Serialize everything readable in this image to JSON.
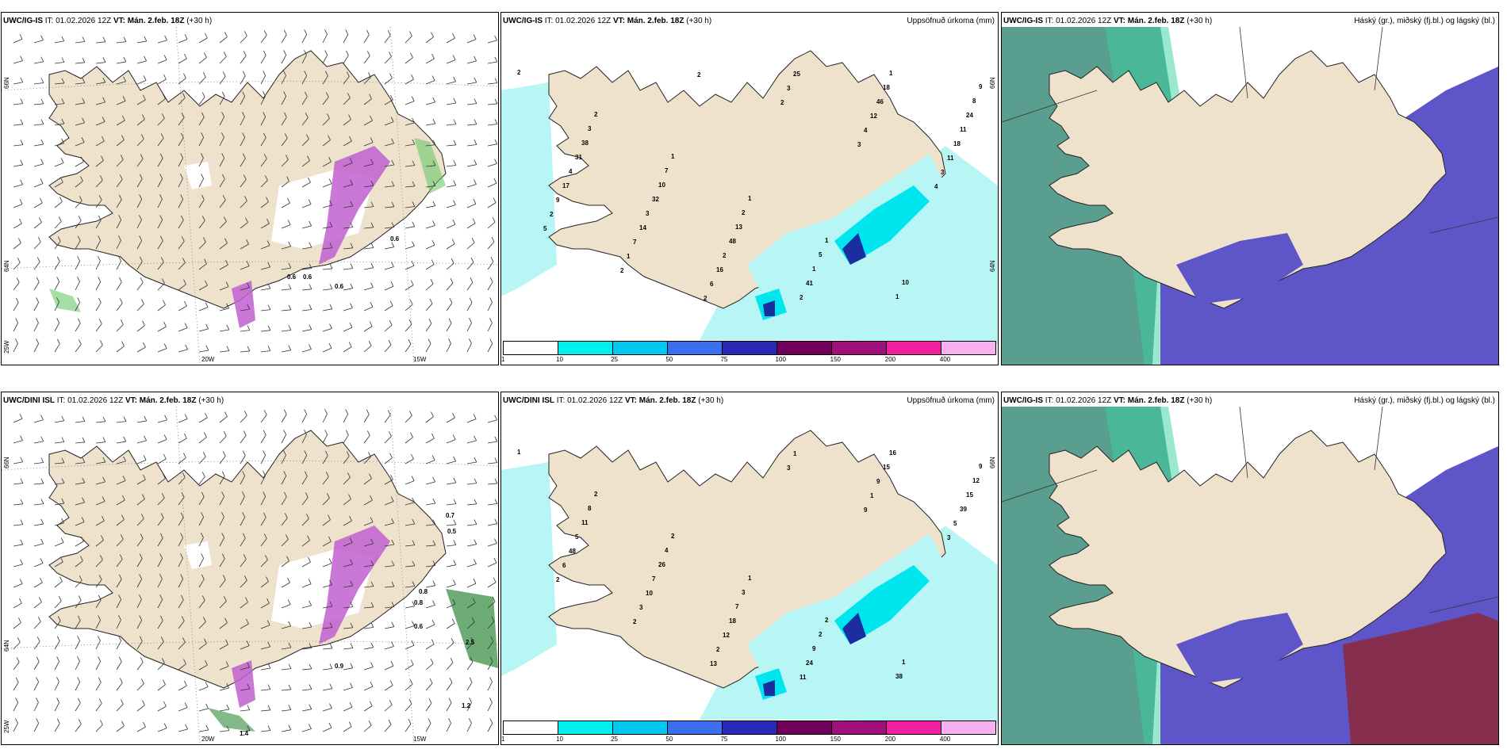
{
  "colors": {
    "land": "#efe2cc",
    "sea": "#ffffff",
    "precip_light": "#b8f6f6",
    "precip_mid": "#00e6ee",
    "precip_dark": "#1a2ea0",
    "snow_purple": "#c060d0",
    "cloud_high": "#5a9e90",
    "cloud_mid": "#5e56c8",
    "cloud_low": "#8b2a40"
  },
  "panels": [
    {
      "model": "UWC/IG-IS",
      "it_label": "IT:",
      "it_value": "01.02.2026 12Z",
      "vt_label": "VT:",
      "vt_value": "Mán. 2.feb. 18Z",
      "lead": "(+30 h)",
      "right_title": "",
      "lat_labels": [
        "66N",
        "64N",
        "25W"
      ],
      "lon_labels": [
        "20W",
        "15W"
      ]
    },
    {
      "model": "UWC/IG-IS",
      "it_label": "IT:",
      "it_value": "01.02.2026 12Z",
      "vt_label": "VT:",
      "vt_value": "Mán. 2.feb. 18Z",
      "lead": "(+30 h)",
      "right_title": "Uppsöfnuð úrkoma (mm)",
      "lat_labels": [
        "66N",
        "64N"
      ],
      "lon_labels": []
    },
    {
      "model": "UWC/IG-IS",
      "it_label": "IT:",
      "it_value": "01.02.2026 12Z",
      "vt_label": "VT:",
      "vt_value": "Mán. 2.feb. 18Z",
      "lead": "(+30 h)",
      "right_title": "Háský (gr.), miðský (fj.bl.) og lágský (bl.)",
      "lat_labels": [],
      "lon_labels": []
    },
    {
      "model": "UWC/DINI ISL",
      "it_label": "IT:",
      "it_value": "01.02.2026 12Z",
      "vt_label": "VT:",
      "vt_value": "Mán. 2.feb. 18Z",
      "lead": "(+30 h)",
      "right_title": "",
      "lat_labels": [
        "66N",
        "64N",
        "25W"
      ],
      "lon_labels": [
        "20W",
        "15W"
      ]
    },
    {
      "model": "UWC/DINI ISL",
      "it_label": "IT:",
      "it_value": "01.02.2026 12Z",
      "vt_label": "VT:",
      "vt_value": "Mán. 2.feb. 18Z",
      "lead": "(+30 h)",
      "right_title": "Uppsöfnuð úrkoma (mm)",
      "lat_labels": [
        "66N"
      ],
      "lon_labels": []
    },
    {
      "model": "UWC/IG-IS",
      "it_label": "IT:",
      "it_value": "01.02.2026 12Z",
      "vt_label": "VT:",
      "vt_value": "Mán. 2.feb. 18Z",
      "lead": "(+30 h)",
      "right_title": "Háský (gr.), miðský (fj.bl.) og lágský (bl.)",
      "lat_labels": [],
      "lon_labels": []
    }
  ],
  "colorbar": {
    "colors": [
      "#ffffff",
      "#00f0f0",
      "#00c8f0",
      "#3c6ef0",
      "#2a2ab8",
      "#70005a",
      "#a0107a",
      "#f020a0",
      "#f8b0f0"
    ],
    "labels": [
      "1",
      "10",
      "25",
      "50",
      "75",
      "100",
      "150",
      "200",
      "400"
    ]
  },
  "precip_labels_top": [
    "2",
    "2",
    "1",
    "1",
    "1",
    "10",
    "9",
    "3",
    "7",
    "2",
    "5",
    "1",
    "8",
    "38",
    "10",
    "13",
    "1",
    "1",
    "24",
    "31",
    "32",
    "48",
    "41",
    "18",
    "11",
    "4",
    "3",
    "2",
    "2",
    "46",
    "18",
    "17",
    "14",
    "16",
    "25",
    "12",
    "11",
    "9",
    "7",
    "6",
    "3",
    "4",
    "3",
    "2",
    "1",
    "2",
    "2",
    "3",
    "4",
    "5",
    "2",
    "2"
  ],
  "precip_labels_bottom": [
    "1",
    "2",
    "2",
    "1",
    "2",
    "1",
    "9",
    "8",
    "4",
    "3",
    "2",
    "38",
    "12",
    "11",
    "26",
    "7",
    "9",
    "16",
    "15",
    "5",
    "7",
    "18",
    "24",
    "15",
    "39",
    "48",
    "10",
    "12",
    "11",
    "9",
    "5",
    "6",
    "3",
    "2",
    "1",
    "1",
    "3",
    "2",
    "2",
    "13",
    "3",
    "9"
  ],
  "wind_labels_top": [
    "0.6",
    "0.6",
    "0.6",
    "0.6"
  ],
  "wind_labels_bottom": [
    "0.7",
    "0.5",
    "0.8",
    "0.8",
    "0.6",
    "2.5",
    "1.2",
    "1.4",
    "0.9"
  ]
}
